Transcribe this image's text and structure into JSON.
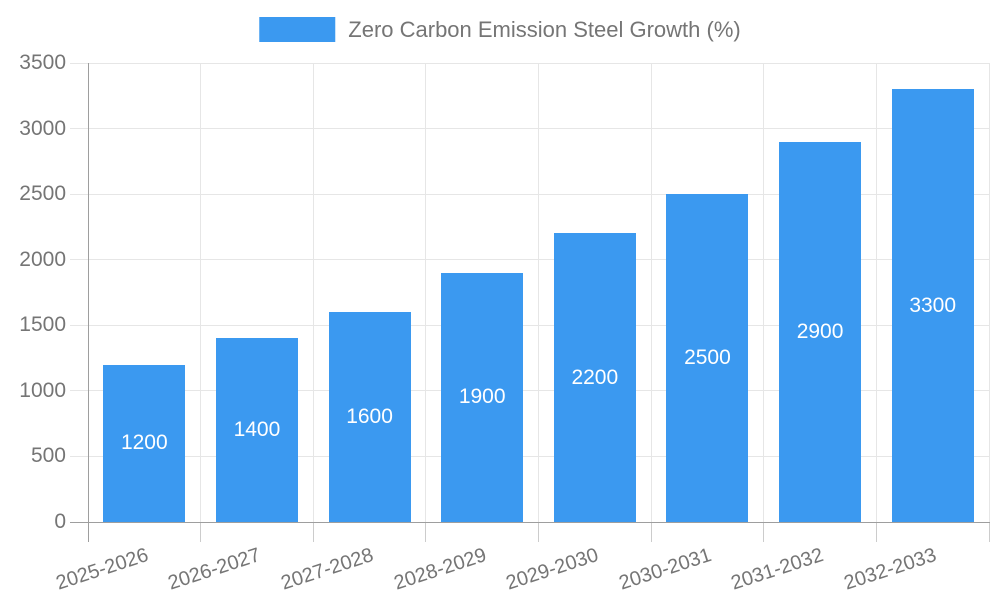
{
  "legend": {
    "label": "Zero Carbon Emission Steel Growth (%)"
  },
  "chart_data": {
    "type": "bar",
    "title": "Zero Carbon Emission Steel Growth (%)",
    "categories": [
      "2025-2026",
      "2026-2027",
      "2027-2028",
      "2028-2029",
      "2029-2030",
      "2030-2031",
      "2031-2032",
      "2032-2033"
    ],
    "values": [
      1200,
      1400,
      1600,
      1900,
      2200,
      2500,
      2900,
      3300
    ],
    "xlabel": "",
    "ylabel": "",
    "ylim": [
      0,
      3500
    ],
    "yticks": [
      0,
      500,
      1000,
      1500,
      2000,
      2500,
      3000,
      3500
    ],
    "grid": true,
    "legend_position": "top-center",
    "value_labels": "white, centered inside bars",
    "x_tick_rotation_deg": -18
  },
  "colors": {
    "background": "#FFFFFF",
    "bar": "#3B99F0",
    "grid": "#E6E6E6",
    "axis": "#9E9E9E",
    "tick_mark": "#CCCCCC",
    "tick_text": "#757575",
    "value_label": "#FFFFFF"
  }
}
